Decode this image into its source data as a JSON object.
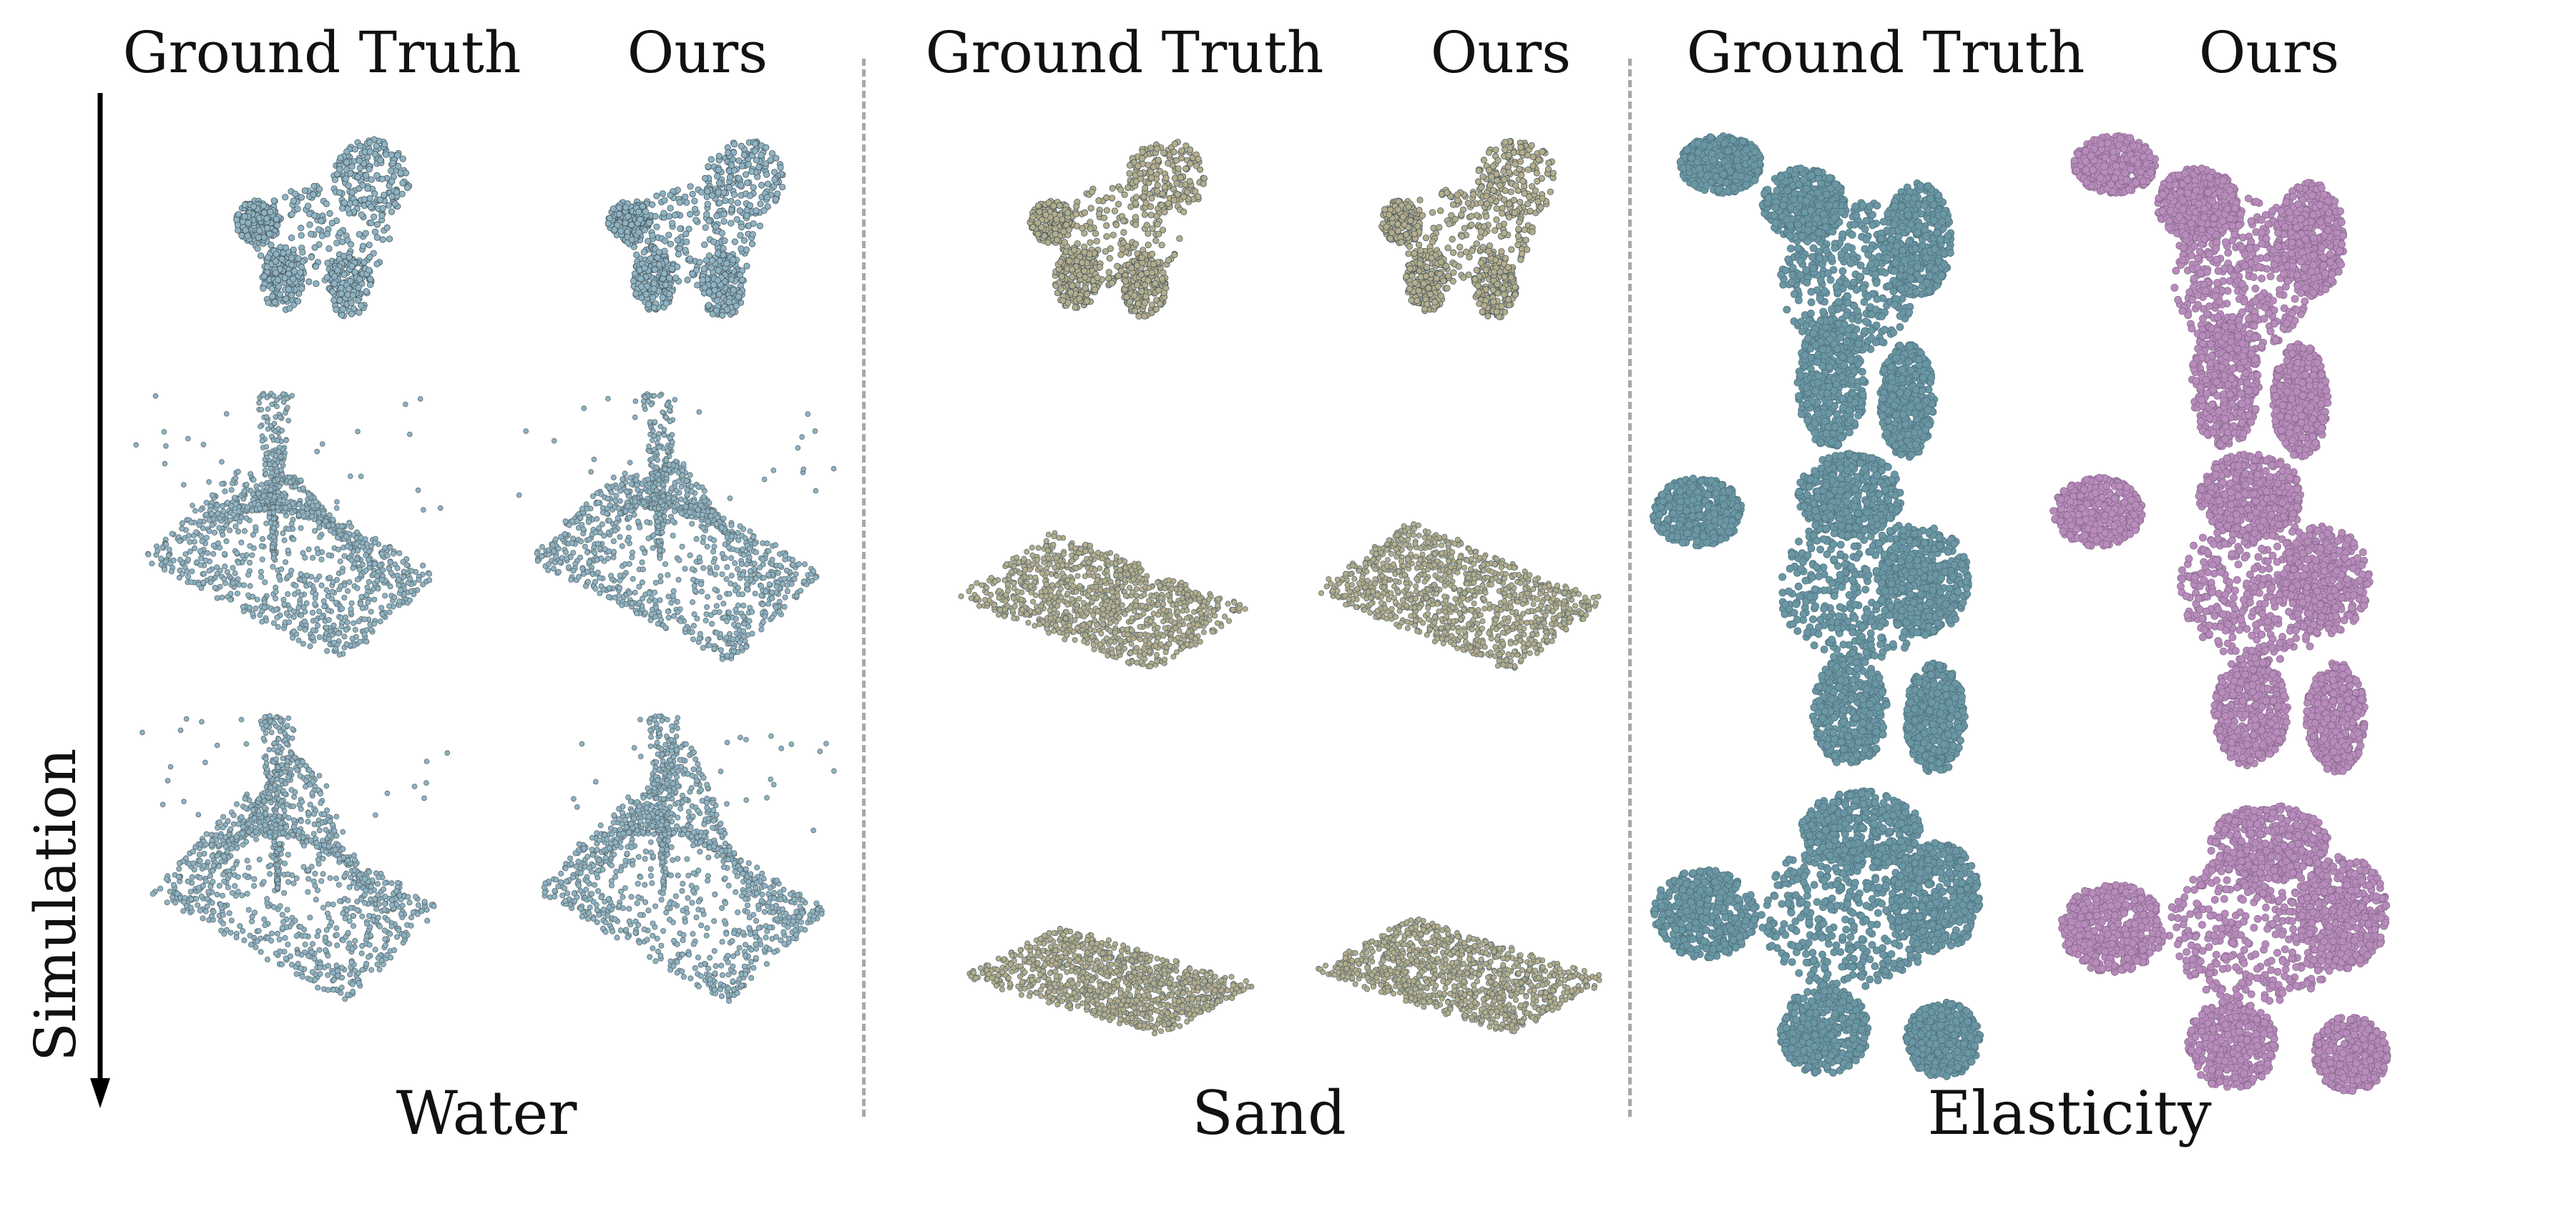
{
  "column_headers": [
    "Ground Truth",
    "Ours",
    "Ground Truth",
    "Ours",
    "Ground Truth",
    "Ours"
  ],
  "section_labels": {
    "water": "Water",
    "sand": "Sand",
    "elasticity": "Elasticity"
  },
  "axis_label": "Simulation",
  "colors": {
    "water": "#8fb3c3",
    "sand": "#b4ad8c",
    "elastic_ground_truth": "#6b97a4",
    "elastic_ours": "#b78cbb",
    "separator": "#a8a8a8"
  },
  "icons": [
    "down-arrow-icon"
  ]
}
